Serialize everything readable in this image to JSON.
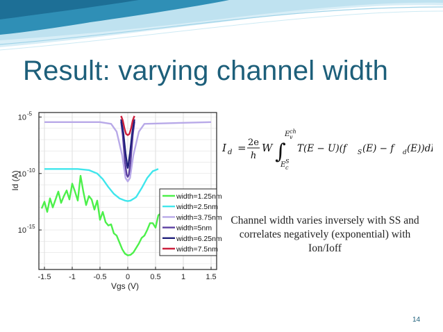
{
  "slide": {
    "title": "Result: varying channel width",
    "caption": "Channel width varies inversely with SS and correlates negatively (exponential) with Ion/Ioff",
    "slide_number": "14",
    "accent_color": "#1d5f7a"
  },
  "equation": {
    "lhs": "I",
    "lhs_sub": "d",
    "equals": "=",
    "frac_num": "2e",
    "frac_den": "h",
    "factor": "W",
    "upper_limit": "E",
    "upper_limit_sup": "ch",
    "upper_limit_sub": "v",
    "lower_limit": "E",
    "lower_limit_sup": "S",
    "lower_limit_sub": "c",
    "integrand": "T(E − U)(f",
    "f1_sub": "S",
    "mid": "(E) − f",
    "f2_sub": "d",
    "tail": "(E))dE"
  },
  "chart_data": {
    "type": "line",
    "xlabel": "Vgs (V)",
    "ylabel": "Id (A)",
    "xlim": [
      -1.6,
      1.6
    ],
    "ylim": [
      -18.5,
      -4.6
    ],
    "y_scale": "log",
    "x_ticks": [
      "-1.5",
      "-1",
      "-0.5",
      "0",
      "0.5",
      "1",
      "1.5"
    ],
    "x_tick_values": [
      -1.5,
      -1,
      -0.5,
      0,
      0.5,
      1,
      1.5
    ],
    "y_ticks": [
      {
        "value": -5,
        "base": "10",
        "exp": "-5"
      },
      {
        "value": -10,
        "base": "10",
        "exp": "-10"
      },
      {
        "value": -15,
        "base": "10",
        "exp": "-15"
      }
    ],
    "grid": true,
    "legend_position": "right",
    "series": [
      {
        "name": "width=1.25nm",
        "color": "#4cf04a",
        "x": [
          -1.55,
          -1.5,
          -1.45,
          -1.4,
          -1.35,
          -1.3,
          -1.25,
          -1.2,
          -1.15,
          -1.1,
          -1.05,
          -1.0,
          -0.95,
          -0.9,
          -0.85,
          -0.8,
          -0.75,
          -0.7,
          -0.65,
          -0.6,
          -0.55,
          -0.5,
          -0.45,
          -0.4,
          -0.35,
          -0.3,
          -0.25,
          -0.2,
          -0.15,
          -0.1,
          -0.05,
          0.0,
          0.05,
          0.1,
          0.15,
          0.2,
          0.25,
          0.3,
          0.35,
          0.4,
          0.45,
          0.5,
          0.55,
          0.6
        ],
        "y": [
          -13.1,
          -12.5,
          -13.4,
          -12.2,
          -13.0,
          -12.3,
          -11.6,
          -12.6,
          -12.0,
          -11.5,
          -12.3,
          -10.9,
          -11.6,
          -12.4,
          -10.2,
          -11.6,
          -12.8,
          -12.0,
          -12.3,
          -13.2,
          -12.4,
          -14.1,
          -13.4,
          -14.3,
          -14.6,
          -14.5,
          -15.3,
          -15.5,
          -16.1,
          -16.7,
          -17.1,
          -17.25,
          -17.2,
          -17.0,
          -16.6,
          -16.2,
          -15.7,
          -15.5,
          -15.0,
          -14.4,
          -14.4,
          -14.8,
          -13.7,
          -13.5
        ]
      },
      {
        "name": "width=2.5nm",
        "color": "#3fe6ec",
        "x": [
          -1.5,
          -1.2,
          -0.9,
          -0.7,
          -0.55,
          -0.45,
          -0.35,
          -0.25,
          -0.15,
          -0.05,
          0.0,
          0.05,
          0.15,
          0.25,
          0.35,
          0.45,
          0.55
        ],
        "y": [
          -9.6,
          -9.6,
          -9.6,
          -9.7,
          -10.0,
          -10.5,
          -11.2,
          -11.8,
          -12.2,
          -12.4,
          -12.45,
          -12.4,
          -12.1,
          -11.3,
          -10.4,
          -9.8,
          -9.6
        ]
      },
      {
        "name": "width=3.75nm",
        "color": "#b8a9e8",
        "x": [
          -1.5,
          -0.5,
          -0.3,
          -0.2,
          -0.1,
          -0.04,
          0.0,
          0.04,
          0.1,
          0.2,
          0.3,
          1.5
        ],
        "y": [
          -5.45,
          -5.45,
          -5.6,
          -6.3,
          -8.4,
          -10.4,
          -10.7,
          -10.4,
          -8.4,
          -6.3,
          -5.6,
          -5.45
        ]
      },
      {
        "name": "width=5nm",
        "color": "#5b3fa0",
        "x": [
          -0.12,
          -0.09,
          -0.05,
          -0.02,
          0.0,
          0.02,
          0.05,
          0.09,
          0.12
        ],
        "y": [
          -5.4,
          -6.6,
          -9.0,
          -10.1,
          -10.3,
          -10.1,
          -9.0,
          -6.6,
          -5.4
        ]
      },
      {
        "name": "width=6.25nm",
        "color": "#1f1f7a",
        "x": [
          -0.12,
          -0.08,
          -0.04,
          -0.01,
          0.0,
          0.01,
          0.04,
          0.08,
          0.12
        ],
        "y": [
          -5.2,
          -6.4,
          -8.2,
          -9.3,
          -9.5,
          -9.3,
          -8.2,
          -6.4,
          -5.2
        ]
      },
      {
        "name": "width=7.5nm",
        "color": "#cc1f3c",
        "x": [
          -0.12,
          -0.09,
          -0.06,
          -0.03,
          0.0,
          0.03,
          0.06,
          0.09,
          0.12
        ],
        "y": [
          -4.9,
          -5.3,
          -6.0,
          -6.5,
          -6.6,
          -6.5,
          -6.0,
          -5.3,
          -4.9
        ]
      }
    ]
  }
}
